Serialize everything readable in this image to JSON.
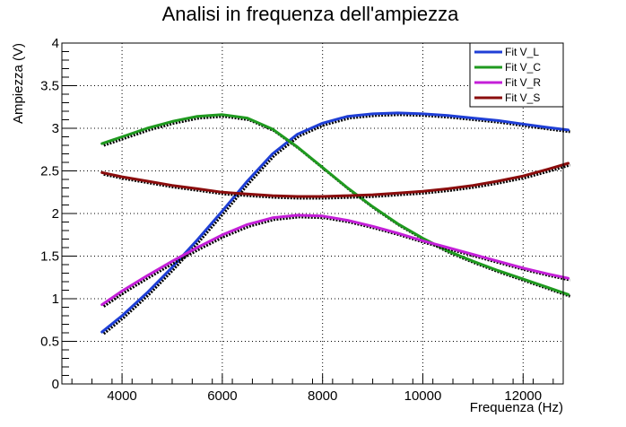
{
  "chart_data": {
    "type": "line",
    "title": "Analisi in frequenza dell'ampiezza",
    "xlabel": "Frequenza (Hz)",
    "ylabel": "Ampiezza (V)",
    "xlim": [
      2800,
      12800
    ],
    "ylim": [
      0,
      4
    ],
    "x_ticks": [
      "4000",
      "6000",
      "8000",
      "10000",
      "12000"
    ],
    "y_ticks": [
      "0",
      "0.5",
      "1",
      "1.5",
      "2",
      "2.5",
      "3",
      "3.5",
      "4"
    ],
    "grid": true,
    "legend_position": "top-right",
    "series": [
      {
        "name": "Fit V_L",
        "color": "#1f3fd6",
        "x": [
          3600,
          4000,
          4500,
          5000,
          5500,
          6000,
          6500,
          7000,
          7500,
          8000,
          8500,
          9000,
          9500,
          10000,
          10500,
          11000,
          11500,
          12000,
          12500,
          12900
        ],
        "values": [
          0.61,
          0.8,
          1.07,
          1.37,
          1.69,
          2.03,
          2.38,
          2.7,
          2.93,
          3.06,
          3.14,
          3.17,
          3.18,
          3.17,
          3.15,
          3.12,
          3.09,
          3.05,
          3.01,
          2.98
        ]
      },
      {
        "name": "Fit V_C",
        "color": "#1f9a1f",
        "x": [
          3600,
          4000,
          4500,
          5000,
          5500,
          6000,
          6500,
          7000,
          7500,
          8000,
          8500,
          9000,
          9500,
          10000,
          10500,
          11000,
          11500,
          12000,
          12500,
          12900
        ],
        "values": [
          2.82,
          2.9,
          3.0,
          3.08,
          3.14,
          3.16,
          3.12,
          2.99,
          2.78,
          2.54,
          2.3,
          2.08,
          1.88,
          1.71,
          1.56,
          1.44,
          1.33,
          1.23,
          1.13,
          1.05
        ]
      },
      {
        "name": "Fit V_R",
        "color": "#c41fd8",
        "x": [
          3600,
          4000,
          4500,
          5000,
          5500,
          6000,
          6500,
          7000,
          7500,
          8000,
          8500,
          9000,
          9500,
          10000,
          10500,
          11000,
          11500,
          12000,
          12500,
          12900
        ],
        "values": [
          0.93,
          1.09,
          1.27,
          1.44,
          1.6,
          1.75,
          1.87,
          1.95,
          1.98,
          1.97,
          1.92,
          1.85,
          1.77,
          1.68,
          1.6,
          1.52,
          1.44,
          1.36,
          1.29,
          1.24
        ]
      },
      {
        "name": "Fit V_S",
        "color": "#8b0d0d",
        "x": [
          3600,
          4000,
          4500,
          5000,
          5500,
          6000,
          6500,
          7000,
          7500,
          8000,
          8500,
          9000,
          9500,
          10000,
          10500,
          11000,
          11500,
          12000,
          12500,
          12900
        ],
        "values": [
          2.48,
          2.43,
          2.38,
          2.33,
          2.29,
          2.25,
          2.23,
          2.21,
          2.2,
          2.2,
          2.21,
          2.22,
          2.24,
          2.26,
          2.29,
          2.33,
          2.38,
          2.44,
          2.52,
          2.59
        ]
      }
    ]
  }
}
